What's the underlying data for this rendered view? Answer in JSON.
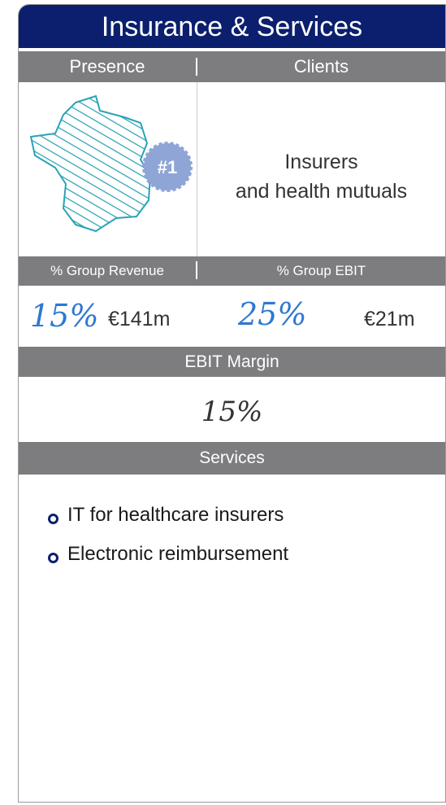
{
  "header": {
    "title": "Insurance & Services"
  },
  "profile": {
    "left_heading": "Presence",
    "right_heading": "Clients",
    "badge": "#1",
    "clients": [
      "Insurers",
      "and health mutuals"
    ]
  },
  "financials": {
    "left_heading": "% Group Revenue",
    "right_heading": "% Group EBIT",
    "revenue_share": "15%",
    "revenue": "€141m",
    "ebit_share": "25%",
    "ebit": "€21m"
  },
  "margin": {
    "heading": "EBIT Margin",
    "value": "15%"
  },
  "services": {
    "heading": "Services",
    "items": [
      "IT for healthcare insurers",
      "Electronic reimbursement"
    ]
  }
}
